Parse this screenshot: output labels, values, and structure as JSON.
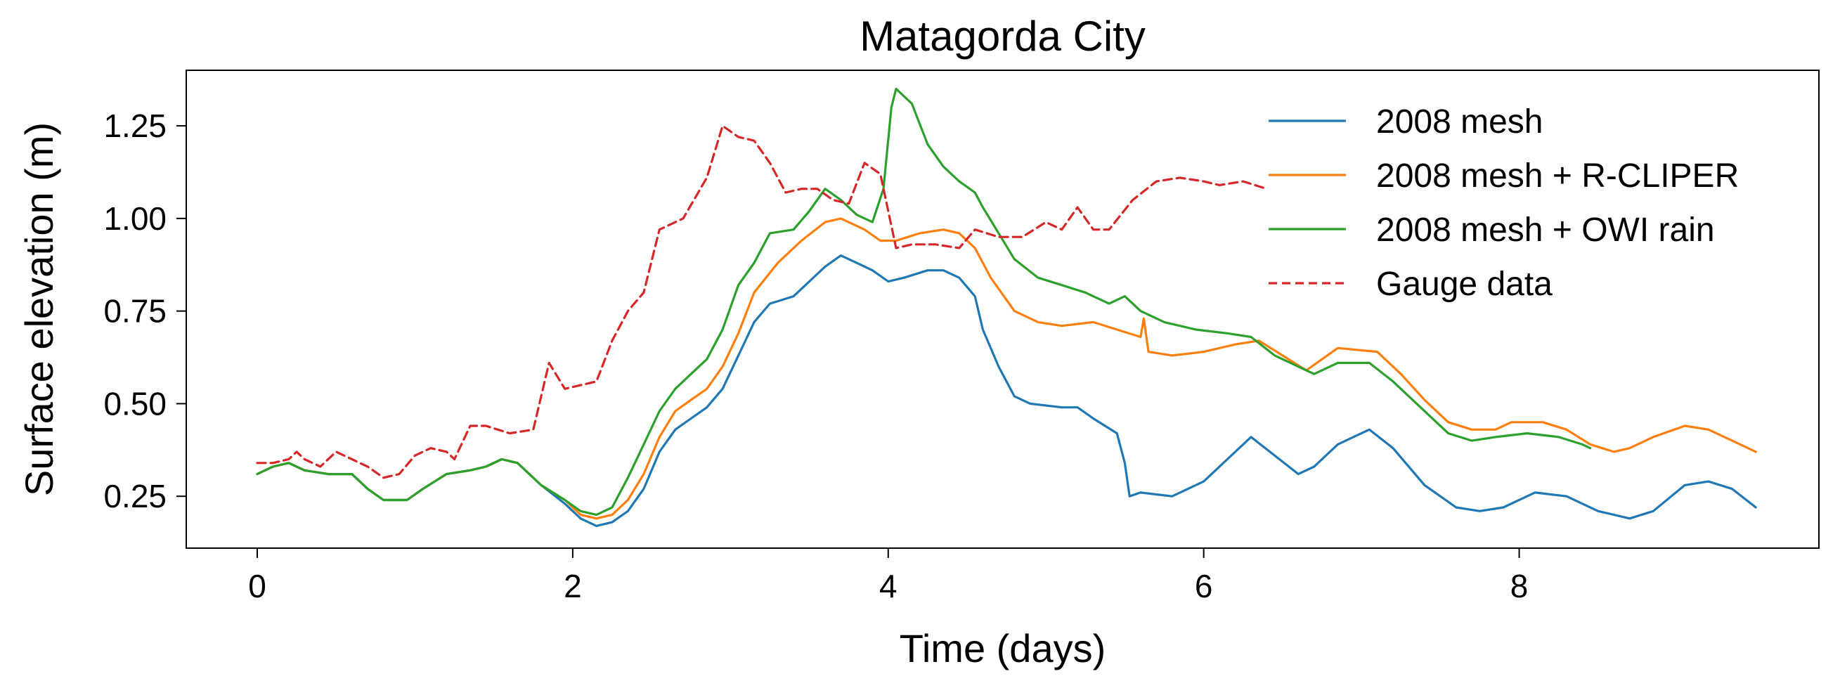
{
  "chart_data": {
    "type": "line",
    "title": "Matagorda City",
    "xlabel": "Time (days)",
    "ylabel": "Surface elevation (m)",
    "xlim": [
      -0.45,
      9.9
    ],
    "ylim": [
      0.11,
      1.4
    ],
    "xticks": [
      0,
      2,
      4,
      6,
      8
    ],
    "yticks": [
      0.25,
      0.5,
      0.75,
      1.0,
      1.25
    ],
    "xtick_labels": [
      "0",
      "2",
      "4",
      "6",
      "8"
    ],
    "ytick_labels": [
      "0.25",
      "0.50",
      "0.75",
      "1.00",
      "1.25"
    ],
    "grid": false,
    "legend_position": "top-right",
    "series": [
      {
        "name": "2008 mesh",
        "color": "#1f77b4",
        "style": "solid",
        "points": [
          [
            0.0,
            0.31
          ],
          [
            0.1,
            0.33
          ],
          [
            0.2,
            0.34
          ],
          [
            0.3,
            0.32
          ],
          [
            0.45,
            0.31
          ],
          [
            0.6,
            0.31
          ],
          [
            0.7,
            0.27
          ],
          [
            0.8,
            0.24
          ],
          [
            0.95,
            0.24
          ],
          [
            1.05,
            0.27
          ],
          [
            1.2,
            0.31
          ],
          [
            1.35,
            0.32
          ],
          [
            1.45,
            0.33
          ],
          [
            1.55,
            0.35
          ],
          [
            1.65,
            0.34
          ],
          [
            1.8,
            0.28
          ],
          [
            1.95,
            0.23
          ],
          [
            2.05,
            0.19
          ],
          [
            2.15,
            0.17
          ],
          [
            2.25,
            0.18
          ],
          [
            2.35,
            0.21
          ],
          [
            2.45,
            0.27
          ],
          [
            2.55,
            0.37
          ],
          [
            2.65,
            0.43
          ],
          [
            2.75,
            0.46
          ],
          [
            2.85,
            0.49
          ],
          [
            2.95,
            0.54
          ],
          [
            3.05,
            0.63
          ],
          [
            3.15,
            0.72
          ],
          [
            3.25,
            0.77
          ],
          [
            3.4,
            0.79
          ],
          [
            3.5,
            0.83
          ],
          [
            3.6,
            0.87
          ],
          [
            3.7,
            0.9
          ],
          [
            3.8,
            0.88
          ],
          [
            3.9,
            0.86
          ],
          [
            4.0,
            0.83
          ],
          [
            4.1,
            0.84
          ],
          [
            4.25,
            0.86
          ],
          [
            4.35,
            0.86
          ],
          [
            4.45,
            0.84
          ],
          [
            4.55,
            0.79
          ],
          [
            4.6,
            0.7
          ],
          [
            4.7,
            0.6
          ],
          [
            4.8,
            0.52
          ],
          [
            4.9,
            0.5
          ],
          [
            5.1,
            0.49
          ],
          [
            5.2,
            0.49
          ],
          [
            5.3,
            0.46
          ],
          [
            5.45,
            0.42
          ],
          [
            5.5,
            0.34
          ],
          [
            5.53,
            0.25
          ],
          [
            5.6,
            0.26
          ],
          [
            5.8,
            0.25
          ],
          [
            6.0,
            0.29
          ],
          [
            6.15,
            0.35
          ],
          [
            6.3,
            0.41
          ],
          [
            6.45,
            0.36
          ],
          [
            6.6,
            0.31
          ],
          [
            6.7,
            0.33
          ],
          [
            6.85,
            0.39
          ],
          [
            7.05,
            0.43
          ],
          [
            7.2,
            0.38
          ],
          [
            7.4,
            0.28
          ],
          [
            7.6,
            0.22
          ],
          [
            7.75,
            0.21
          ],
          [
            7.9,
            0.22
          ],
          [
            8.1,
            0.26
          ],
          [
            8.3,
            0.25
          ],
          [
            8.5,
            0.21
          ],
          [
            8.7,
            0.19
          ],
          [
            8.85,
            0.21
          ],
          [
            9.05,
            0.28
          ],
          [
            9.2,
            0.29
          ],
          [
            9.35,
            0.27
          ],
          [
            9.5,
            0.22
          ]
        ]
      },
      {
        "name": "2008 mesh + R-CLIPER",
        "color": "#ff7f0e",
        "style": "solid",
        "points": [
          [
            0.0,
            0.31
          ],
          [
            0.1,
            0.33
          ],
          [
            0.2,
            0.34
          ],
          [
            0.3,
            0.32
          ],
          [
            0.45,
            0.31
          ],
          [
            0.6,
            0.31
          ],
          [
            0.7,
            0.27
          ],
          [
            0.8,
            0.24
          ],
          [
            0.95,
            0.24
          ],
          [
            1.05,
            0.27
          ],
          [
            1.2,
            0.31
          ],
          [
            1.35,
            0.32
          ],
          [
            1.45,
            0.33
          ],
          [
            1.55,
            0.35
          ],
          [
            1.65,
            0.34
          ],
          [
            1.8,
            0.28
          ],
          [
            1.95,
            0.24
          ],
          [
            2.05,
            0.2
          ],
          [
            2.15,
            0.19
          ],
          [
            2.25,
            0.2
          ],
          [
            2.35,
            0.24
          ],
          [
            2.45,
            0.31
          ],
          [
            2.55,
            0.41
          ],
          [
            2.65,
            0.48
          ],
          [
            2.75,
            0.51
          ],
          [
            2.85,
            0.54
          ],
          [
            2.95,
            0.6
          ],
          [
            3.05,
            0.69
          ],
          [
            3.15,
            0.8
          ],
          [
            3.3,
            0.88
          ],
          [
            3.45,
            0.94
          ],
          [
            3.6,
            0.99
          ],
          [
            3.7,
            1.0
          ],
          [
            3.85,
            0.97
          ],
          [
            3.95,
            0.94
          ],
          [
            4.05,
            0.94
          ],
          [
            4.2,
            0.96
          ],
          [
            4.35,
            0.97
          ],
          [
            4.45,
            0.96
          ],
          [
            4.55,
            0.92
          ],
          [
            4.65,
            0.84
          ],
          [
            4.8,
            0.75
          ],
          [
            4.95,
            0.72
          ],
          [
            5.1,
            0.71
          ],
          [
            5.3,
            0.72
          ],
          [
            5.45,
            0.7
          ],
          [
            5.6,
            0.68
          ],
          [
            5.62,
            0.73
          ],
          [
            5.65,
            0.64
          ],
          [
            5.8,
            0.63
          ],
          [
            6.0,
            0.64
          ],
          [
            6.2,
            0.66
          ],
          [
            6.35,
            0.67
          ],
          [
            6.5,
            0.63
          ],
          [
            6.65,
            0.59
          ],
          [
            6.75,
            0.62
          ],
          [
            6.85,
            0.65
          ],
          [
            7.1,
            0.64
          ],
          [
            7.25,
            0.58
          ],
          [
            7.4,
            0.51
          ],
          [
            7.55,
            0.45
          ],
          [
            7.7,
            0.43
          ],
          [
            7.85,
            0.43
          ],
          [
            7.95,
            0.45
          ],
          [
            8.15,
            0.45
          ],
          [
            8.3,
            0.43
          ],
          [
            8.45,
            0.39
          ],
          [
            8.6,
            0.37
          ],
          [
            8.7,
            0.38
          ],
          [
            8.85,
            0.41
          ],
          [
            9.05,
            0.44
          ],
          [
            9.2,
            0.43
          ],
          [
            9.35,
            0.4
          ],
          [
            9.5,
            0.37
          ]
        ]
      },
      {
        "name": "2008 mesh + OWI rain",
        "color": "#2ca02c",
        "style": "solid",
        "points": [
          [
            0.0,
            0.31
          ],
          [
            0.1,
            0.33
          ],
          [
            0.2,
            0.34
          ],
          [
            0.3,
            0.32
          ],
          [
            0.45,
            0.31
          ],
          [
            0.6,
            0.31
          ],
          [
            0.7,
            0.27
          ],
          [
            0.8,
            0.24
          ],
          [
            0.95,
            0.24
          ],
          [
            1.05,
            0.27
          ],
          [
            1.2,
            0.31
          ],
          [
            1.35,
            0.32
          ],
          [
            1.45,
            0.33
          ],
          [
            1.55,
            0.35
          ],
          [
            1.65,
            0.34
          ],
          [
            1.8,
            0.28
          ],
          [
            1.95,
            0.24
          ],
          [
            2.05,
            0.21
          ],
          [
            2.15,
            0.2
          ],
          [
            2.25,
            0.22
          ],
          [
            2.35,
            0.3
          ],
          [
            2.45,
            0.39
          ],
          [
            2.55,
            0.48
          ],
          [
            2.65,
            0.54
          ],
          [
            2.75,
            0.58
          ],
          [
            2.85,
            0.62
          ],
          [
            2.95,
            0.7
          ],
          [
            3.05,
            0.82
          ],
          [
            3.15,
            0.88
          ],
          [
            3.25,
            0.96
          ],
          [
            3.4,
            0.97
          ],
          [
            3.5,
            1.02
          ],
          [
            3.6,
            1.08
          ],
          [
            3.7,
            1.05
          ],
          [
            3.8,
            1.01
          ],
          [
            3.9,
            0.99
          ],
          [
            3.97,
            1.08
          ],
          [
            4.02,
            1.3
          ],
          [
            4.05,
            1.35
          ],
          [
            4.15,
            1.31
          ],
          [
            4.25,
            1.2
          ],
          [
            4.35,
            1.14
          ],
          [
            4.45,
            1.1
          ],
          [
            4.55,
            1.07
          ],
          [
            4.6,
            1.03
          ],
          [
            4.7,
            0.96
          ],
          [
            4.8,
            0.89
          ],
          [
            4.95,
            0.84
          ],
          [
            5.1,
            0.82
          ],
          [
            5.25,
            0.8
          ],
          [
            5.4,
            0.77
          ],
          [
            5.5,
            0.79
          ],
          [
            5.6,
            0.75
          ],
          [
            5.75,
            0.72
          ],
          [
            5.95,
            0.7
          ],
          [
            6.15,
            0.69
          ],
          [
            6.3,
            0.68
          ],
          [
            6.45,
            0.63
          ],
          [
            6.6,
            0.6
          ],
          [
            6.7,
            0.58
          ],
          [
            6.85,
            0.61
          ],
          [
            7.05,
            0.61
          ],
          [
            7.2,
            0.56
          ],
          [
            7.4,
            0.48
          ],
          [
            7.55,
            0.42
          ],
          [
            7.7,
            0.4
          ],
          [
            7.85,
            0.41
          ],
          [
            8.05,
            0.42
          ],
          [
            8.25,
            0.41
          ],
          [
            8.4,
            0.39
          ],
          [
            8.45,
            0.38
          ]
        ]
      },
      {
        "name": "Gauge data",
        "color": "#d62728",
        "style": "dashed",
        "points": [
          [
            0.0,
            0.34
          ],
          [
            0.1,
            0.34
          ],
          [
            0.2,
            0.35
          ],
          [
            0.25,
            0.37
          ],
          [
            0.3,
            0.35
          ],
          [
            0.4,
            0.33
          ],
          [
            0.5,
            0.37
          ],
          [
            0.6,
            0.35
          ],
          [
            0.7,
            0.33
          ],
          [
            0.8,
            0.3
          ],
          [
            0.9,
            0.31
          ],
          [
            1.0,
            0.36
          ],
          [
            1.1,
            0.38
          ],
          [
            1.2,
            0.37
          ],
          [
            1.25,
            0.35
          ],
          [
            1.35,
            0.44
          ],
          [
            1.45,
            0.44
          ],
          [
            1.6,
            0.42
          ],
          [
            1.75,
            0.43
          ],
          [
            1.85,
            0.61
          ],
          [
            1.95,
            0.54
          ],
          [
            2.05,
            0.55
          ],
          [
            2.15,
            0.56
          ],
          [
            2.25,
            0.67
          ],
          [
            2.35,
            0.75
          ],
          [
            2.45,
            0.8
          ],
          [
            2.55,
            0.97
          ],
          [
            2.7,
            1.0
          ],
          [
            2.85,
            1.11
          ],
          [
            2.95,
            1.25
          ],
          [
            3.05,
            1.22
          ],
          [
            3.15,
            1.21
          ],
          [
            3.25,
            1.15
          ],
          [
            3.35,
            1.07
          ],
          [
            3.45,
            1.08
          ],
          [
            3.55,
            1.08
          ],
          [
            3.65,
            1.05
          ],
          [
            3.75,
            1.04
          ],
          [
            3.85,
            1.15
          ],
          [
            3.95,
            1.12
          ],
          [
            4.05,
            0.92
          ],
          [
            4.15,
            0.93
          ],
          [
            4.3,
            0.93
          ],
          [
            4.45,
            0.92
          ],
          [
            4.55,
            0.97
          ],
          [
            4.7,
            0.95
          ],
          [
            4.85,
            0.95
          ],
          [
            5.0,
            0.99
          ],
          [
            5.1,
            0.97
          ],
          [
            5.2,
            1.03
          ],
          [
            5.3,
            0.97
          ],
          [
            5.4,
            0.97
          ],
          [
            5.55,
            1.05
          ],
          [
            5.7,
            1.1
          ],
          [
            5.85,
            1.11
          ],
          [
            6.0,
            1.1
          ],
          [
            6.1,
            1.09
          ],
          [
            6.25,
            1.1
          ],
          [
            6.4,
            1.08
          ]
        ]
      }
    ]
  }
}
